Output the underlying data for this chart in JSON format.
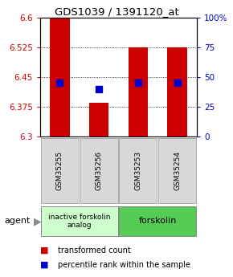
{
  "title": "GDS1039 / 1391120_at",
  "samples": [
    "GSM35255",
    "GSM35256",
    "GSM35253",
    "GSM35254"
  ],
  "bar_bottoms": [
    6.3,
    6.3,
    6.3,
    6.3
  ],
  "bar_tops": [
    6.6,
    6.385,
    6.525,
    6.525
  ],
  "percentile_values": [
    6.435,
    6.42,
    6.435,
    6.435
  ],
  "ylim_min": 6.3,
  "ylim_max": 6.6,
  "yticks_left": [
    6.3,
    6.375,
    6.45,
    6.525,
    6.6
  ],
  "yticks_right_vals": [
    6.3,
    6.375,
    6.45,
    6.525,
    6.6
  ],
  "yticks_right_labels": [
    "0",
    "25",
    "50",
    "75",
    "100%"
  ],
  "bar_color": "#cc0000",
  "dot_color": "#0000cc",
  "left_tick_color": "#cc0000",
  "right_tick_color": "#0000cc",
  "group1_label": "inactive forskolin\nanalog",
  "group2_label": "forskolin",
  "group1_color": "#ccffcc",
  "group2_color": "#55cc55",
  "agent_label": "agent",
  "legend_red_label": "transformed count",
  "legend_blue_label": "percentile rank within the sample",
  "bar_width": 0.5,
  "bg_color": "#ffffff",
  "fig_width": 2.9,
  "fig_height": 3.45,
  "dpi": 100
}
